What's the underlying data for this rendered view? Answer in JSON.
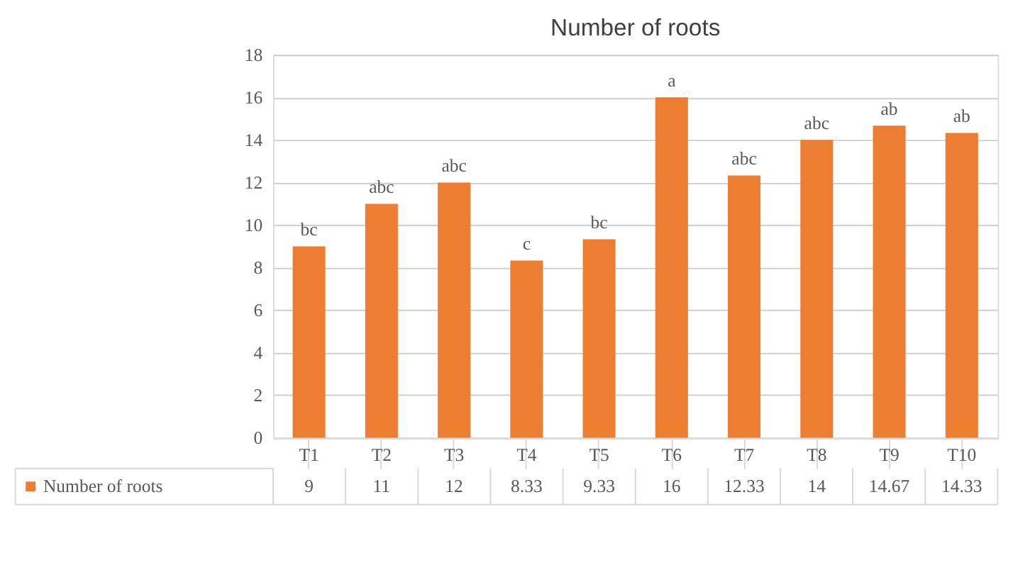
{
  "chart_data": {
    "type": "bar",
    "title": "Number of roots",
    "categories": [
      "T1",
      "T2",
      "T3",
      "T4",
      "T5",
      "T6",
      "T7",
      "T8",
      "T9",
      "T10"
    ],
    "series": [
      {
        "name": "Number of roots",
        "color": "#ed7d31",
        "values": [
          9,
          11,
          12,
          8.33,
          9.33,
          16,
          12.33,
          14,
          14.67,
          14.33
        ]
      }
    ],
    "ylim": [
      0,
      18
    ],
    "yticks": [
      0,
      2,
      4,
      6,
      8,
      10,
      12,
      14,
      16,
      18
    ],
    "grid": "y",
    "legend": "bottom",
    "data_labels": true,
    "annotations": [
      {
        "text": "bc",
        "x": "T1",
        "y": 9
      },
      {
        "text": "abc",
        "x": "T2",
        "y": 11
      },
      {
        "text": "abc",
        "x": "T3",
        "y": 12
      },
      {
        "text": "c",
        "x": "T4",
        "y": 8.33
      },
      {
        "text": "bc",
        "x": "T5",
        "y": 9.33
      },
      {
        "text": "a",
        "x": "T6",
        "y": 16
      },
      {
        "text": "abc",
        "x": "T7",
        "y": 12.33
      },
      {
        "text": "abc",
        "x": "T8",
        "y": 14
      },
      {
        "text": "ab",
        "x": "T9",
        "y": 14.67
      },
      {
        "text": "ab",
        "x": "T10",
        "y": 14.33
      }
    ]
  }
}
